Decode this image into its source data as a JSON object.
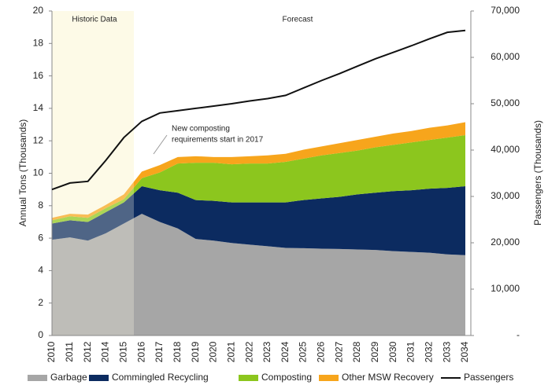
{
  "chart_data": {
    "type": "stacked_area_line",
    "categories": [
      "2010",
      "2011",
      "2012",
      "2014",
      "2015",
      "2016",
      "2017",
      "2018",
      "2019",
      "2020",
      "2021",
      "2022",
      "2023",
      "2024",
      "2025",
      "2026",
      "2027",
      "2028",
      "2029",
      "2030",
      "2031",
      "2032",
      "2033",
      "2034"
    ],
    "series": [
      {
        "name": "Garbage",
        "color": "#a6a6a6",
        "values": [
          5.9,
          6.05,
          5.85,
          6.3,
          6.9,
          7.5,
          7.0,
          6.6,
          5.95,
          5.85,
          5.7,
          5.6,
          5.5,
          5.4,
          5.38,
          5.35,
          5.33,
          5.3,
          5.27,
          5.2,
          5.15,
          5.1,
          5.0,
          4.95
        ]
      },
      {
        "name": "Commingled Recycling",
        "color": "#0c2b60",
        "values": [
          1.0,
          1.05,
          1.15,
          1.3,
          1.3,
          1.7,
          1.95,
          2.2,
          2.4,
          2.45,
          2.5,
          2.6,
          2.7,
          2.8,
          2.97,
          3.1,
          3.22,
          3.4,
          3.53,
          3.7,
          3.8,
          3.95,
          4.1,
          4.25
        ]
      },
      {
        "name": "Composting",
        "color": "#8cc61e",
        "values": [
          0.2,
          0.25,
          0.25,
          0.25,
          0.2,
          0.5,
          1.1,
          1.8,
          2.3,
          2.35,
          2.35,
          2.4,
          2.4,
          2.5,
          2.55,
          2.65,
          2.7,
          2.7,
          2.8,
          2.85,
          2.95,
          3.0,
          3.1,
          3.15
        ]
      },
      {
        "name": "Other MSW Recovery",
        "color": "#f7a51c",
        "values": [
          0.15,
          0.15,
          0.2,
          0.2,
          0.3,
          0.4,
          0.45,
          0.4,
          0.4,
          0.35,
          0.45,
          0.45,
          0.5,
          0.5,
          0.55,
          0.55,
          0.6,
          0.65,
          0.65,
          0.7,
          0.7,
          0.75,
          0.75,
          0.8
        ]
      },
      {
        "name": "Passengers",
        "color": "#111111",
        "axis": "y2",
        "values": [
          31500,
          32900,
          33250,
          37800,
          42700,
          46200,
          48000,
          48500,
          49000,
          49500,
          50000,
          50600,
          51100,
          51800,
          53400,
          55000,
          56500,
          58100,
          59700,
          61100,
          62500,
          64000,
          65400,
          65800
        ]
      }
    ],
    "ylabel": "Annual Tons (Thousands)",
    "y2label": "Passengers (Thousands)",
    "ylim": [
      0,
      20
    ],
    "yticks": [
      0,
      2,
      4,
      6,
      8,
      10,
      12,
      14,
      16,
      18,
      20
    ],
    "y2lim": [
      0,
      70000
    ],
    "y2ticks": [
      {
        "value": 0,
        "label": "-"
      },
      {
        "value": 10000,
        "label": "10,000"
      },
      {
        "value": 20000,
        "label": "20,000"
      },
      {
        "value": 30000,
        "label": "30,000"
      },
      {
        "value": 40000,
        "label": "40,000"
      },
      {
        "value": 50000,
        "label": "50,000"
      },
      {
        "value": 60000,
        "label": "60,000"
      },
      {
        "value": 70000,
        "label": "70,000"
      }
    ],
    "annotations": {
      "historic": "Historic Data",
      "forecast": "Forecast",
      "note": [
        "New composting",
        "requirements start in 2017"
      ]
    },
    "legend": "bottom"
  }
}
